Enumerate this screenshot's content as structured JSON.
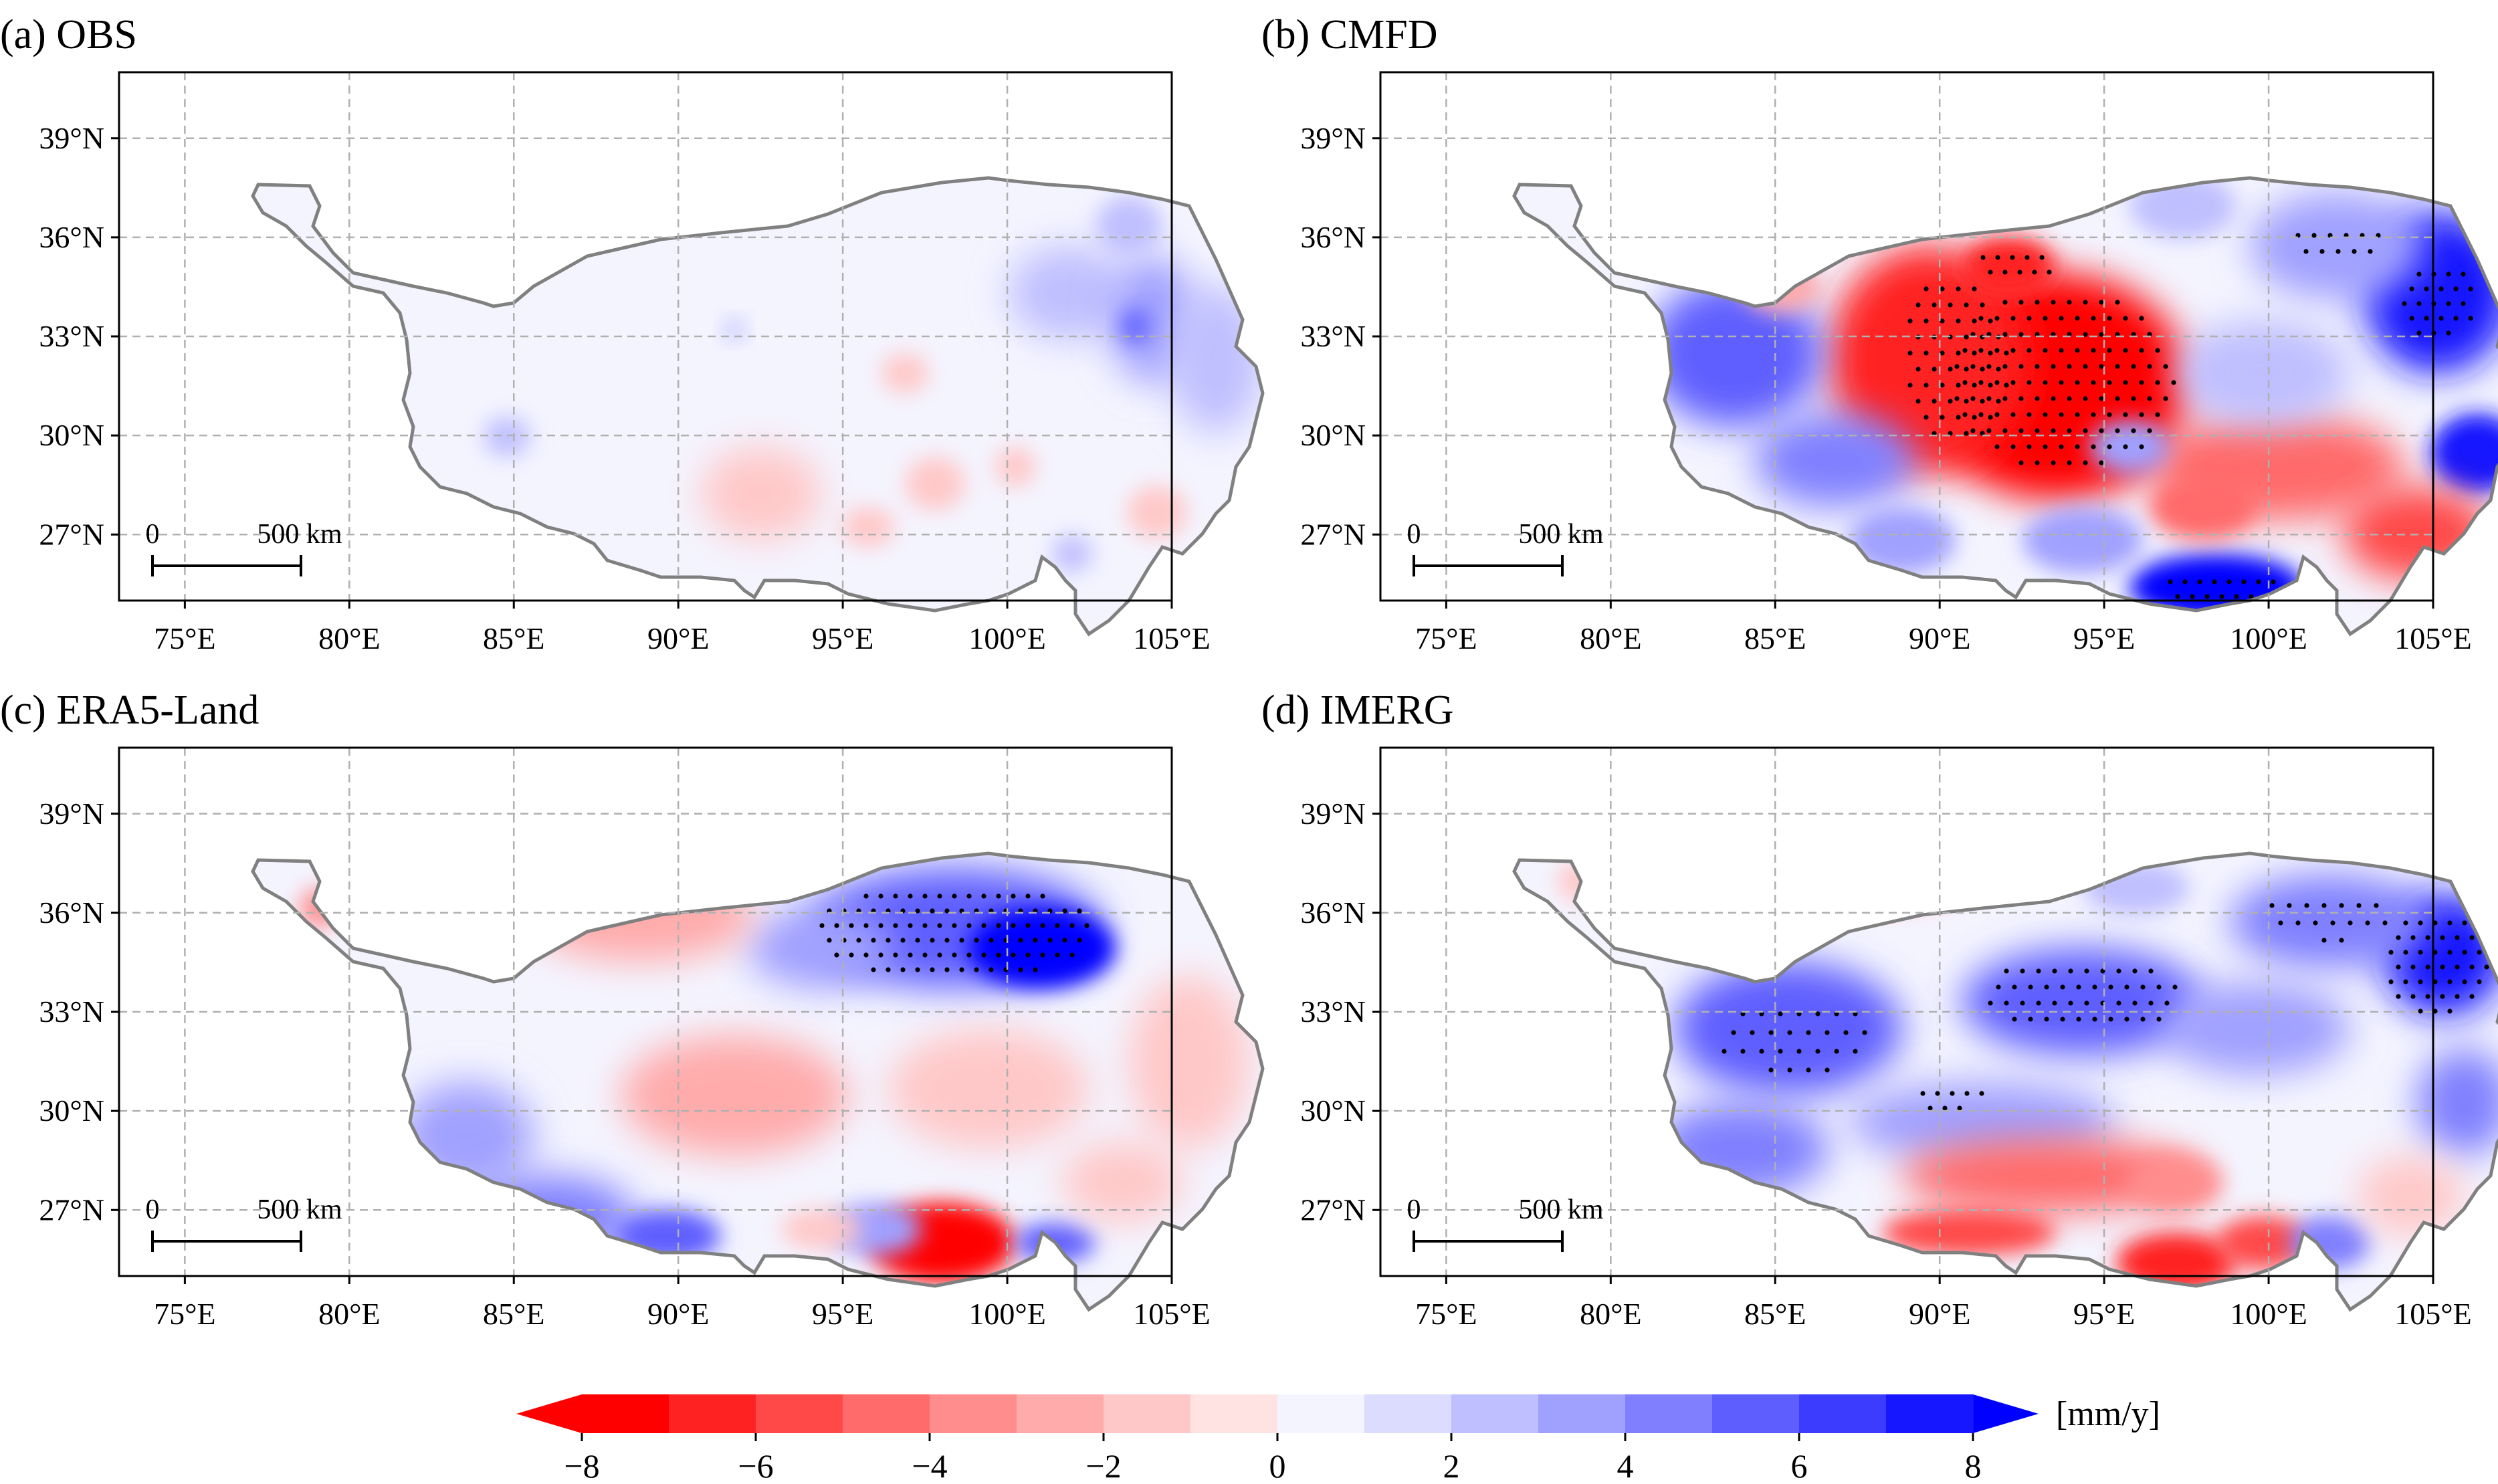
{
  "figure": {
    "panels": [
      {
        "id": "a",
        "title": "(a) OBS",
        "pattern": "obs"
      },
      {
        "id": "b",
        "title": "(b) CMFD",
        "pattern": "cmfd"
      },
      {
        "id": "c",
        "title": "(c) ERA5-Land",
        "pattern": "era5"
      },
      {
        "id": "d",
        "title": "(d) IMERG",
        "pattern": "imerg"
      }
    ],
    "lon_ticks": [
      "75°E",
      "80°E",
      "85°E",
      "90°E",
      "95°E",
      "100°E",
      "105°E"
    ],
    "lon_values": [
      75,
      80,
      85,
      90,
      95,
      100,
      105
    ],
    "lat_ticks": [
      "39°N",
      "36°N",
      "33°N",
      "30°N",
      "27°N"
    ],
    "lat_values": [
      39,
      36,
      33,
      30,
      27
    ],
    "lon_range": [
      73,
      105
    ],
    "lat_range": [
      25,
      41
    ],
    "scale_bar": {
      "start_label": "0",
      "end_label": "500 km"
    },
    "colorbar": {
      "ticks": [
        "−8",
        "−6",
        "−4",
        "−2",
        "0",
        "2",
        "4",
        "6",
        "8"
      ],
      "tick_values": [
        -8,
        -6,
        -4,
        -2,
        0,
        2,
        4,
        6,
        8
      ],
      "unit": "[mm/y]",
      "levels": [
        -8,
        -7,
        -6,
        -5,
        -4,
        -3,
        -2,
        -1,
        0,
        1,
        2,
        3,
        4,
        5,
        6,
        7,
        8
      ],
      "colors": [
        "#ff0000",
        "#ff2222",
        "#ff4848",
        "#ff6b6b",
        "#ff8d8d",
        "#ffabab",
        "#ffc8c8",
        "#ffe3e3",
        "#f4f4ff",
        "#dcdcff",
        "#bfbfff",
        "#a0a0ff",
        "#8080ff",
        "#5e5eff",
        "#3c3cff",
        "#1616ff"
      ],
      "under_color": "#ff0000",
      "over_color": "#0000ff"
    },
    "colors": {
      "outline": "#808080",
      "grid": "#b0b0b0",
      "stipple": "#000000"
    }
  },
  "chart_data": [
    {
      "type": "heatmap",
      "title": "(a) OBS",
      "variable": "precipitation trend",
      "unit": "mm/y",
      "xlim": [
        73,
        105
      ],
      "ylim": [
        25,
        41
      ],
      "features": [
        {
          "label": "northeast wet anomaly",
          "lon": 100.5,
          "lat": 35.5,
          "value": 4
        },
        {
          "label": "eastern wet anomaly",
          "lon": 96.5,
          "lat": 37.2,
          "value": 2
        },
        {
          "label": "southeast dry spot",
          "lon": 101,
          "lat": 29.8,
          "value": -1.5
        },
        {
          "label": "south dry spot",
          "lon": 92.5,
          "lat": 29.5,
          "value": -1.5
        },
        {
          "label": "southwest wet spot",
          "lon": 84.5,
          "lat": 32,
          "value": 2
        }
      ]
    },
    {
      "type": "heatmap",
      "title": "(b) CMFD",
      "variable": "precipitation trend",
      "unit": "mm/y",
      "xlim": [
        73,
        105
      ],
      "ylim": [
        25,
        41
      ],
      "features": [
        {
          "label": "central dry core (significant)",
          "lon": 89.5,
          "lat": 34,
          "value": -8
        },
        {
          "label": "northeast wet core (significant)",
          "lon": 100.5,
          "lat": 35.5,
          "value": 8
        },
        {
          "label": "southeast wet core (significant)",
          "lon": 94.5,
          "lat": 28.1,
          "value": 8
        },
        {
          "label": "western wet area",
          "lon": 80,
          "lat": 33.5,
          "value": 5
        },
        {
          "label": "southeast dry area",
          "lon": 100,
          "lat": 30,
          "value": -5
        }
      ]
    },
    {
      "type": "heatmap",
      "title": "(c) ERA5-Land",
      "variable": "precipitation trend",
      "unit": "mm/y",
      "xlim": [
        73,
        105
      ],
      "ylim": [
        25,
        41
      ],
      "features": [
        {
          "label": "northern wet band (significant)",
          "lon": 96,
          "lat": 38,
          "value": 7
        },
        {
          "label": "southern dry core",
          "lon": 94,
          "lat": 27.8,
          "value": -8
        },
        {
          "label": "southwest wet band",
          "lon": 84,
          "lat": 29.3,
          "value": 5
        },
        {
          "label": "western dry area",
          "lon": 83,
          "lat": 35.2,
          "value": -3
        },
        {
          "label": "central dry area",
          "lon": 93,
          "lat": 32.5,
          "value": -3
        }
      ]
    },
    {
      "type": "heatmap",
      "title": "(d) IMERG",
      "variable": "precipitation trend",
      "unit": "mm/y",
      "xlim": [
        73,
        105
      ],
      "ylim": [
        25,
        41
      ],
      "features": [
        {
          "label": "northeast wet core (significant)",
          "lon": 100.5,
          "lat": 36,
          "value": 8
        },
        {
          "label": "central wet band (significant)",
          "lon": 90,
          "lat": 35,
          "value": 6
        },
        {
          "label": "southern dry band",
          "lon": 89,
          "lat": 30.8,
          "value": -5
        },
        {
          "label": "southern dry spots",
          "lon": 92,
          "lat": 28,
          "value": -7
        },
        {
          "label": "southwest wet band",
          "lon": 84,
          "lat": 32.5,
          "value": 5
        }
      ]
    }
  ]
}
